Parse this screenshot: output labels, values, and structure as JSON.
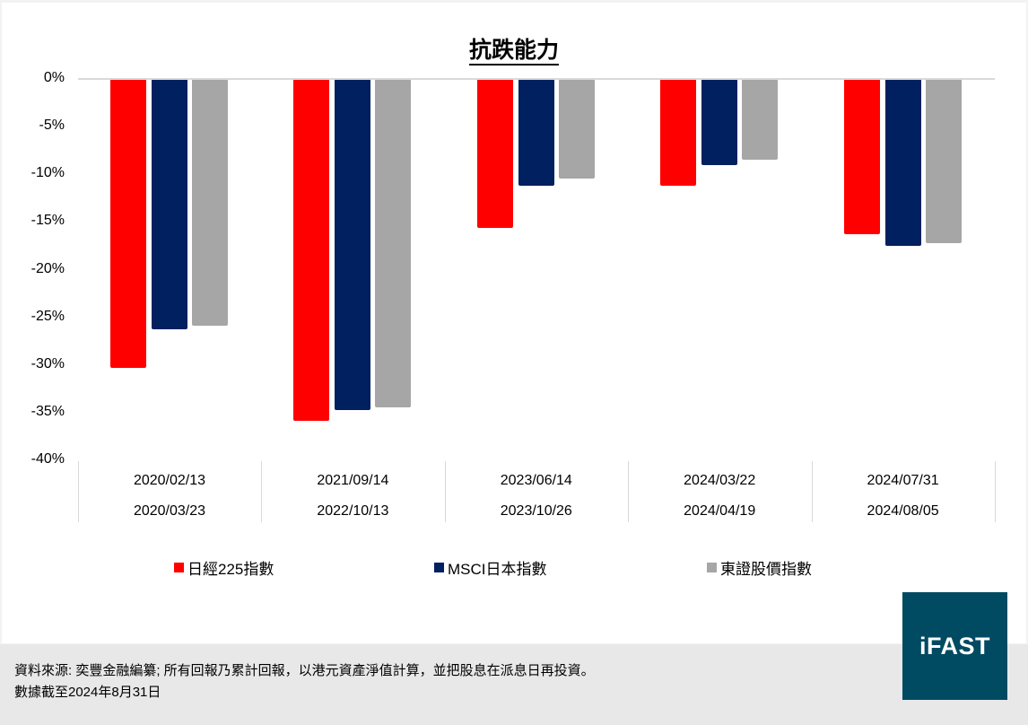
{
  "chart_data": {
    "type": "bar",
    "title": "抗跌能力",
    "xlabel": "",
    "ylabel": "",
    "ylim": [
      -40,
      0
    ],
    "yticks": [
      "0%",
      "-5%",
      "-10%",
      "-15%",
      "-20%",
      "-25%",
      "-30%",
      "-35%",
      "-40%"
    ],
    "categories": [
      {
        "start": "2020/02/13",
        "end": "2020/03/23"
      },
      {
        "start": "2021/09/14",
        "end": "2022/10/13"
      },
      {
        "start": "2023/06/14",
        "end": "2023/10/26"
      },
      {
        "start": "2024/03/22",
        "end": "2024/04/19"
      },
      {
        "start": "2024/07/31",
        "end": "2024/08/05"
      }
    ],
    "series": [
      {
        "name": "日經225指數",
        "color": "#ff0000",
        "values": [
          -30.3,
          -35.9,
          -15.6,
          -11.2,
          -16.3
        ]
      },
      {
        "name": "MSCI日本指數",
        "color": "#002060",
        "values": [
          -26.3,
          -34.7,
          -11.2,
          -9.0,
          -17.5
        ]
      },
      {
        "name": "東證股價指數",
        "color": "#a6a6a6",
        "values": [
          -25.9,
          -34.4,
          -10.4,
          -8.5,
          -17.2
        ]
      }
    ],
    "grid": false,
    "legend_position": "bottom"
  },
  "footer": {
    "source_line": "資料來源: 奕豐金融編纂; 所有回報乃累計回報，以港元資產淨值計算，並把股息在派息日再投資。",
    "date_line": "數據截至2024年8月31日"
  },
  "logo": {
    "text": "iFAST",
    "color": "#004a62"
  }
}
